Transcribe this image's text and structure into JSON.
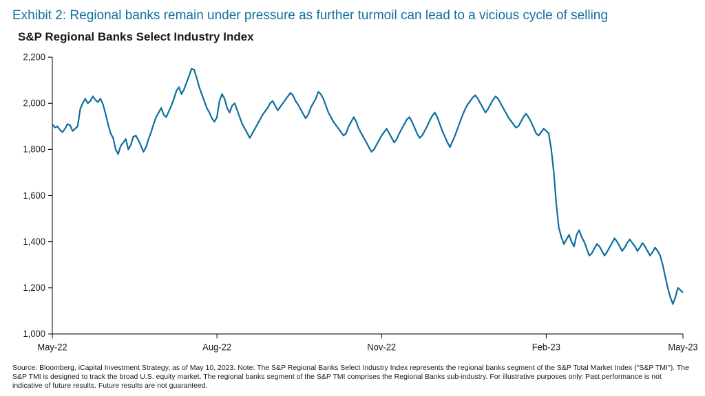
{
  "exhibit": {
    "title": "Exhibit 2: Regional banks remain under pressure as further turmoil can lead to a vicious cycle of selling",
    "title_color": "#0f6f9e",
    "title_fontsize": 19,
    "subtitle": "S&P Regional Banks Select Industry Index",
    "subtitle_fontsize": 17
  },
  "chart": {
    "type": "line",
    "background_color": "#ffffff",
    "line_color": "#0f6f9e",
    "line_width": 2.2,
    "axis_color": "#000000",
    "tick_length": 6,
    "label_fontsize": 13,
    "ylim": [
      1000,
      2200
    ],
    "ytick_step": 200,
    "y_ticks": [
      1000,
      1200,
      1400,
      1600,
      1800,
      2000,
      2200
    ],
    "x_ticks": [
      {
        "i": 0,
        "label": "May-22"
      },
      {
        "i": 65,
        "label": "Aug-22"
      },
      {
        "i": 130,
        "label": "Nov-22"
      },
      {
        "i": 195,
        "label": "Feb-23"
      },
      {
        "i": 249,
        "label": "May-23"
      }
    ],
    "xlim_i": [
      0,
      249
    ],
    "series": [
      1910,
      1895,
      1900,
      1885,
      1875,
      1890,
      1910,
      1905,
      1880,
      1890,
      1900,
      1975,
      2000,
      2020,
      2000,
      2010,
      2030,
      2015,
      2005,
      2020,
      1995,
      1955,
      1910,
      1870,
      1850,
      1800,
      1780,
      1815,
      1830,
      1845,
      1800,
      1820,
      1855,
      1860,
      1840,
      1815,
      1790,
      1810,
      1845,
      1875,
      1910,
      1940,
      1960,
      1980,
      1950,
      1940,
      1965,
      1990,
      2020,
      2055,
      2070,
      2040,
      2060,
      2090,
      2120,
      2150,
      2145,
      2110,
      2070,
      2040,
      2010,
      1980,
      1960,
      1935,
      1920,
      1940,
      2010,
      2040,
      2020,
      1980,
      1960,
      1990,
      2000,
      1970,
      1940,
      1910,
      1890,
      1870,
      1850,
      1870,
      1890,
      1910,
      1930,
      1950,
      1965,
      1980,
      2000,
      2010,
      1990,
      1970,
      1985,
      2000,
      2015,
      2030,
      2045,
      2035,
      2010,
      1995,
      1975,
      1955,
      1935,
      1950,
      1980,
      2000,
      2020,
      2050,
      2040,
      2020,
      1990,
      1960,
      1940,
      1920,
      1905,
      1890,
      1875,
      1860,
      1870,
      1900,
      1920,
      1940,
      1920,
      1890,
      1870,
      1850,
      1830,
      1810,
      1790,
      1800,
      1820,
      1840,
      1860,
      1875,
      1890,
      1870,
      1850,
      1830,
      1845,
      1870,
      1890,
      1910,
      1930,
      1940,
      1920,
      1895,
      1870,
      1850,
      1860,
      1880,
      1900,
      1925,
      1945,
      1960,
      1940,
      1910,
      1880,
      1855,
      1830,
      1810,
      1835,
      1860,
      1890,
      1920,
      1950,
      1975,
      1995,
      2010,
      2025,
      2035,
      2020,
      2000,
      1980,
      1960,
      1975,
      1995,
      2015,
      2030,
      2020,
      2000,
      1980,
      1960,
      1940,
      1925,
      1910,
      1895,
      1900,
      1920,
      1940,
      1955,
      1940,
      1920,
      1895,
      1870,
      1860,
      1875,
      1890,
      1880,
      1870,
      1800,
      1700,
      1560,
      1460,
      1420,
      1390,
      1410,
      1430,
      1400,
      1380,
      1430,
      1450,
      1420,
      1400,
      1370,
      1340,
      1350,
      1370,
      1390,
      1380,
      1360,
      1340,
      1355,
      1375,
      1395,
      1415,
      1400,
      1380,
      1360,
      1375,
      1395,
      1410,
      1395,
      1380,
      1360,
      1375,
      1395,
      1380,
      1360,
      1340,
      1355,
      1375,
      1360,
      1340,
      1300,
      1250,
      1200,
      1160,
      1130,
      1160,
      1200,
      1190,
      1180
    ]
  },
  "source": {
    "text": "Source: Bloomberg, iCapital Investment Strategy, as of May 10, 2023. Note: The S&P Regional Banks Select Industry Index represents the regional banks segment of the S&P Total Market Index (\"S&P TMI\"). The S&P TMI is designed to track the broad U.S. equity market. The regional banks segment of the S&P TMI comprises the Regional Banks sub-industry. For illustrative purposes only. Past performance is not indicative of future results. Future results are not guaranteed."
  }
}
